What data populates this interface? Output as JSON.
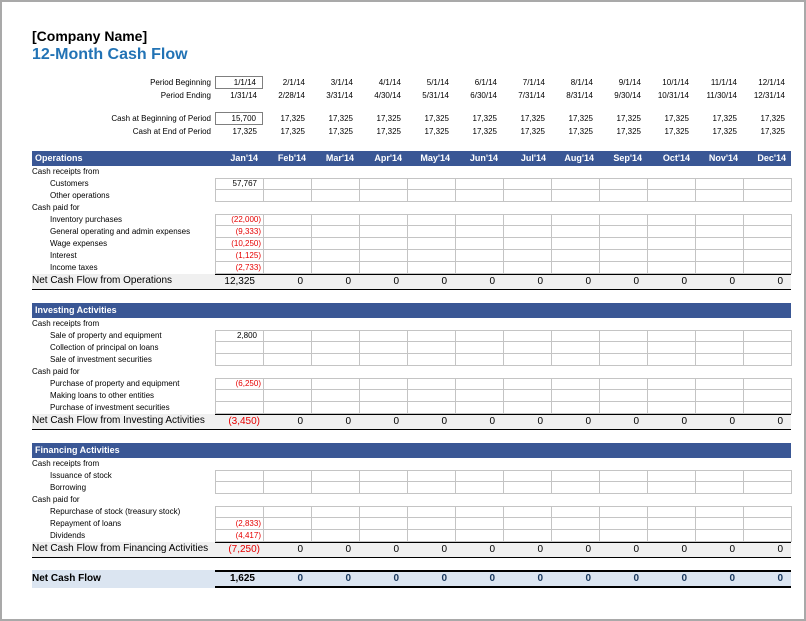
{
  "header": {
    "company": "[Company Name]",
    "title": "12-Month Cash Flow"
  },
  "colors": {
    "title_blue": "#2273B5",
    "section_bar_blue": "#3A5795",
    "negative_red": "#E60000",
    "net_row_bg": "#DBE5F1",
    "total_row_bg": "#F0F0F0",
    "net_zero_navy": "#17375D"
  },
  "months": [
    "Jan'14",
    "Feb'14",
    "Mar'14",
    "Apr'14",
    "May'14",
    "Jun'14",
    "Jul'14",
    "Aug'14",
    "Sep'14",
    "Oct'14",
    "Nov'14",
    "Dec'14"
  ],
  "period_info": [
    {
      "label": "Period Beginning",
      "boxed": true,
      "spacer_before": false,
      "values": [
        "1/1/14",
        "2/1/14",
        "3/1/14",
        "4/1/14",
        "5/1/14",
        "6/1/14",
        "7/1/14",
        "8/1/14",
        "9/1/14",
        "10/1/14",
        "11/1/14",
        "12/1/14"
      ]
    },
    {
      "label": "Period Ending",
      "boxed": false,
      "spacer_before": false,
      "values": [
        "1/31/14",
        "2/28/14",
        "3/31/14",
        "4/30/14",
        "5/31/14",
        "6/30/14",
        "7/31/14",
        "8/31/14",
        "9/30/14",
        "10/31/14",
        "11/30/14",
        "12/31/14"
      ]
    },
    {
      "label": "Cash at Beginning of Period",
      "boxed": true,
      "spacer_before": true,
      "values": [
        "15,700",
        "17,325",
        "17,325",
        "17,325",
        "17,325",
        "17,325",
        "17,325",
        "17,325",
        "17,325",
        "17,325",
        "17,325",
        "17,325"
      ]
    },
    {
      "label": "Cash at End of Period",
      "boxed": false,
      "spacer_before": false,
      "values": [
        "17,325",
        "17,325",
        "17,325",
        "17,325",
        "17,325",
        "17,325",
        "17,325",
        "17,325",
        "17,325",
        "17,325",
        "17,325",
        "17,325"
      ]
    }
  ],
  "sections": [
    {
      "title": "Operations",
      "show_months": true,
      "rows": [
        {
          "type": "group",
          "label": "Cash receipts from"
        },
        {
          "type": "item",
          "label": "Customers",
          "values": [
            "57,767",
            "",
            "",
            "",
            "",
            "",
            "",
            "",
            "",
            "",
            "",
            ""
          ]
        },
        {
          "type": "item",
          "label": "Other operations",
          "values": [
            "",
            "",
            "",
            "",
            "",
            "",
            "",
            "",
            "",
            "",
            "",
            ""
          ]
        },
        {
          "type": "group",
          "label": "Cash paid for"
        },
        {
          "type": "item",
          "label": "Inventory purchases",
          "values": [
            "(22,000)",
            "",
            "",
            "",
            "",
            "",
            "",
            "",
            "",
            "",
            "",
            ""
          ]
        },
        {
          "type": "item",
          "label": "General operating and admin expenses",
          "values": [
            "(9,333)",
            "",
            "",
            "",
            "",
            "",
            "",
            "",
            "",
            "",
            "",
            ""
          ]
        },
        {
          "type": "item",
          "label": "Wage expenses",
          "values": [
            "(10,250)",
            "",
            "",
            "",
            "",
            "",
            "",
            "",
            "",
            "",
            "",
            ""
          ]
        },
        {
          "type": "item",
          "label": "Interest",
          "values": [
            "(1,125)",
            "",
            "",
            "",
            "",
            "",
            "",
            "",
            "",
            "",
            "",
            ""
          ]
        },
        {
          "type": "item",
          "label": "Income taxes",
          "values": [
            "(2,733)",
            "",
            "",
            "",
            "",
            "",
            "",
            "",
            "",
            "",
            "",
            ""
          ]
        }
      ],
      "total": {
        "label": "Net Cash Flow from Operations",
        "values": [
          "12,325",
          "0",
          "0",
          "0",
          "0",
          "0",
          "0",
          "0",
          "0",
          "0",
          "0",
          "0"
        ]
      }
    },
    {
      "title": "Investing Activities",
      "show_months": false,
      "rows": [
        {
          "type": "group",
          "label": "Cash receipts from"
        },
        {
          "type": "item",
          "label": "Sale of property and equipment",
          "values": [
            "2,800",
            "",
            "",
            "",
            "",
            "",
            "",
            "",
            "",
            "",
            "",
            ""
          ]
        },
        {
          "type": "item",
          "label": "Collection of principal on loans",
          "values": [
            "",
            "",
            "",
            "",
            "",
            "",
            "",
            "",
            "",
            "",
            "",
            ""
          ]
        },
        {
          "type": "item",
          "label": "Sale of investment securities",
          "values": [
            "",
            "",
            "",
            "",
            "",
            "",
            "",
            "",
            "",
            "",
            "",
            ""
          ]
        },
        {
          "type": "group",
          "label": "Cash paid for"
        },
        {
          "type": "item",
          "label": "Purchase of property and equipment",
          "values": [
            "(6,250)",
            "",
            "",
            "",
            "",
            "",
            "",
            "",
            "",
            "",
            "",
            ""
          ]
        },
        {
          "type": "item",
          "label": "Making loans to other entities",
          "values": [
            "",
            "",
            "",
            "",
            "",
            "",
            "",
            "",
            "",
            "",
            "",
            ""
          ]
        },
        {
          "type": "item",
          "label": "Purchase of investment securities",
          "values": [
            "",
            "",
            "",
            "",
            "",
            "",
            "",
            "",
            "",
            "",
            "",
            ""
          ]
        }
      ],
      "total": {
        "label": "Net Cash Flow from Investing Activities",
        "values": [
          "(3,450)",
          "0",
          "0",
          "0",
          "0",
          "0",
          "0",
          "0",
          "0",
          "0",
          "0",
          "0"
        ]
      }
    },
    {
      "title": "Financing Activities",
      "show_months": false,
      "rows": [
        {
          "type": "group",
          "label": "Cash receipts from"
        },
        {
          "type": "item",
          "label": "Issuance of stock",
          "values": [
            "",
            "",
            "",
            "",
            "",
            "",
            "",
            "",
            "",
            "",
            "",
            ""
          ]
        },
        {
          "type": "item",
          "label": "Borrowing",
          "values": [
            "",
            "",
            "",
            "",
            "",
            "",
            "",
            "",
            "",
            "",
            "",
            ""
          ]
        },
        {
          "type": "group",
          "label": "Cash paid for"
        },
        {
          "type": "item",
          "label": "Repurchase of stock (treasury stock)",
          "values": [
            "",
            "",
            "",
            "",
            "",
            "",
            "",
            "",
            "",
            "",
            "",
            ""
          ]
        },
        {
          "type": "item",
          "label": "Repayment of loans",
          "values": [
            "(2,833)",
            "",
            "",
            "",
            "",
            "",
            "",
            "",
            "",
            "",
            "",
            ""
          ]
        },
        {
          "type": "item",
          "label": "Dividends",
          "values": [
            "(4,417)",
            "",
            "",
            "",
            "",
            "",
            "",
            "",
            "",
            "",
            "",
            ""
          ]
        }
      ],
      "total": {
        "label": "Net Cash Flow from Financing Activities",
        "values": [
          "(7,250)",
          "0",
          "0",
          "0",
          "0",
          "0",
          "0",
          "0",
          "0",
          "0",
          "0",
          "0"
        ]
      }
    }
  ],
  "grand_total": {
    "label": "Net Cash Flow",
    "values": [
      "1,625",
      "0",
      "0",
      "0",
      "0",
      "0",
      "0",
      "0",
      "0",
      "0",
      "0",
      "0"
    ]
  }
}
